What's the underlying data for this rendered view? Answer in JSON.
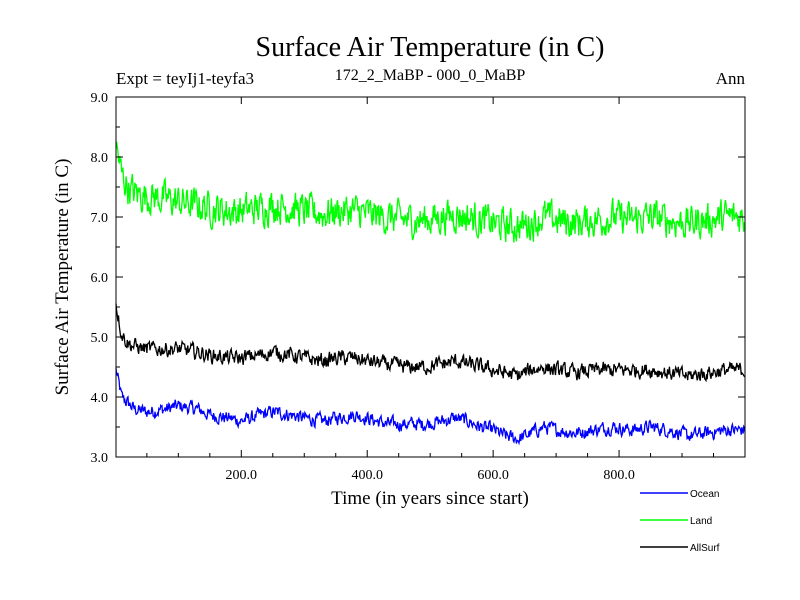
{
  "chart_data": {
    "type": "line",
    "title": "Surface Air Temperature (in C)",
    "subtitle_left": "Expt = teyIj1-teyfa3",
    "subtitle_center": "172_2_MaBP - 000_0_MaBP",
    "subtitle_right": "Ann",
    "xlabel": "Time (in years since start)",
    "ylabel": "Surface Air Temperature (in C)",
    "xlim": [
      1,
      1000
    ],
    "ylim": [
      3.0,
      9.0
    ],
    "x_ticks": [
      200,
      400,
      600,
      800
    ],
    "x_tick_labels": [
      "200.0",
      "400.0",
      "600.0",
      "800.0"
    ],
    "y_ticks": [
      3,
      4,
      5,
      6,
      7,
      8,
      9
    ],
    "y_tick_labels": [
      "3.0",
      "4.0",
      "5.0",
      "6.0",
      "7.0",
      "8.0",
      "9.0"
    ],
    "grid": false,
    "legend_position": "bottom-right, below plot",
    "series": [
      {
        "name": "Ocean",
        "color": "#0000ff",
        "x": [
          1,
          10,
          20,
          30,
          50,
          80,
          100,
          130,
          150,
          180,
          200,
          230,
          250,
          280,
          300,
          330,
          350,
          380,
          400,
          430,
          460,
          490,
          520,
          540,
          560,
          580,
          600,
          620,
          640,
          660,
          680,
          700,
          730,
          760,
          790,
          820,
          850,
          880,
          910,
          940,
          970,
          1000
        ],
        "values": [
          4.45,
          4.0,
          3.9,
          3.8,
          3.75,
          3.8,
          3.85,
          3.8,
          3.7,
          3.65,
          3.6,
          3.7,
          3.75,
          3.7,
          3.65,
          3.6,
          3.65,
          3.7,
          3.65,
          3.55,
          3.55,
          3.55,
          3.6,
          3.65,
          3.6,
          3.5,
          3.45,
          3.35,
          3.3,
          3.4,
          3.5,
          3.45,
          3.4,
          3.45,
          3.5,
          3.45,
          3.5,
          3.45,
          3.35,
          3.4,
          3.45,
          3.45
        ],
        "noise": 0.08
      },
      {
        "name": "Land",
        "color": "#00ff00",
        "x": [
          1,
          10,
          20,
          30,
          50,
          80,
          100,
          130,
          150,
          180,
          200,
          230,
          250,
          280,
          300,
          330,
          350,
          380,
          400,
          430,
          460,
          490,
          520,
          540,
          560,
          580,
          600,
          620,
          640,
          660,
          680,
          700,
          730,
          760,
          790,
          820,
          850,
          880,
          910,
          940,
          970,
          1000
        ],
        "values": [
          8.2,
          7.7,
          7.5,
          7.4,
          7.35,
          7.3,
          7.25,
          7.2,
          7.15,
          7.1,
          7.1,
          7.15,
          7.2,
          7.15,
          7.1,
          7.05,
          7.1,
          7.1,
          7.05,
          7.0,
          6.95,
          6.95,
          7.0,
          7.05,
          7.0,
          6.95,
          6.9,
          6.85,
          6.85,
          6.9,
          7.0,
          6.95,
          6.9,
          6.95,
          7.0,
          6.95,
          7.0,
          6.95,
          6.9,
          6.95,
          7.0,
          7.0
        ],
        "noise": 0.2
      },
      {
        "name": "AllSurf",
        "color": "#000000",
        "x": [
          1,
          10,
          20,
          30,
          50,
          80,
          100,
          130,
          150,
          180,
          200,
          230,
          250,
          280,
          300,
          330,
          350,
          380,
          400,
          430,
          460,
          490,
          520,
          540,
          560,
          580,
          600,
          620,
          640,
          660,
          680,
          700,
          730,
          760,
          790,
          820,
          850,
          880,
          910,
          940,
          970,
          1000
        ],
        "values": [
          5.55,
          5.05,
          4.9,
          4.85,
          4.8,
          4.8,
          4.8,
          4.75,
          4.7,
          4.65,
          4.65,
          4.7,
          4.75,
          4.7,
          4.65,
          4.6,
          4.65,
          4.65,
          4.6,
          4.55,
          4.5,
          4.5,
          4.55,
          4.6,
          4.55,
          4.5,
          4.45,
          4.4,
          4.35,
          4.45,
          4.5,
          4.45,
          4.4,
          4.45,
          4.45,
          4.45,
          4.45,
          4.4,
          4.35,
          4.4,
          4.45,
          4.45
        ],
        "noise": 0.09
      }
    ]
  }
}
